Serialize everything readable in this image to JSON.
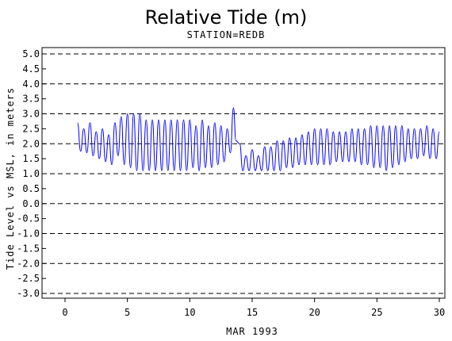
{
  "chart_data": {
    "type": "line",
    "title": "Relative Tide (m)",
    "subtitle": "STATION=REDB",
    "xlabel": "MAR 1993",
    "ylabel": "Tide Level vs MSL, in meters",
    "xlim": [
      0,
      30
    ],
    "ylim": [
      -3.0,
      5.0
    ],
    "x_ticks": [
      0,
      5,
      10,
      15,
      20,
      25,
      30
    ],
    "x_tick_labels": [
      "0",
      "5",
      "10",
      "15",
      "20",
      "25",
      "30"
    ],
    "y_ticks": [
      5.0,
      4.5,
      4.0,
      3.5,
      3.0,
      2.5,
      2.0,
      1.5,
      1.0,
      0.5,
      0.0,
      -0.5,
      -1.0,
      -1.5,
      -2.0,
      -2.5,
      -3.0
    ],
    "y_tick_labels": [
      "5.0",
      "4.5",
      "4.0",
      "3.5",
      "3.0",
      "2.5",
      "2.0",
      "1.5",
      "1.0",
      "0.5",
      "0.0",
      "-0.5",
      "-1.0",
      "-1.5",
      "-2.0",
      "-2.5",
      "-3.0"
    ],
    "gridlines_y": [
      5.0,
      4.0,
      3.0,
      2.0,
      1.0,
      0.0,
      -1.0,
      -2.0,
      -3.0
    ],
    "series": [
      {
        "color": "#0000ff",
        "x": [
          1.0,
          1.25,
          1.5,
          1.75,
          2.0,
          2.25,
          2.5,
          2.75,
          3.0,
          3.25,
          3.5,
          3.75,
          4.0,
          4.25,
          4.5,
          4.75,
          5.0,
          5.25,
          5.5,
          5.75,
          6.0,
          6.25,
          6.5,
          6.75,
          7.0,
          7.25,
          7.5,
          7.75,
          8.0,
          8.25,
          8.5,
          8.75,
          9.0,
          9.25,
          9.5,
          9.75,
          10.0,
          10.25,
          10.5,
          10.75,
          11.0,
          11.25,
          11.5,
          11.75,
          12.0,
          12.25,
          12.5,
          12.75,
          13.0,
          13.25,
          13.5,
          13.7,
          14.0,
          14.25,
          14.5,
          14.75,
          15.0,
          15.25,
          15.5,
          15.75,
          16.0,
          16.25,
          16.5,
          16.75,
          17.0,
          17.25,
          17.5,
          17.75,
          18.0,
          18.25,
          18.5,
          18.75,
          19.0,
          19.25,
          19.5,
          19.75,
          20.0,
          20.25,
          20.5,
          20.75,
          21.0,
          21.25,
          21.5,
          21.75,
          22.0,
          22.25,
          22.5,
          22.75,
          23.0,
          23.25,
          23.5,
          23.75,
          24.0,
          24.25,
          24.5,
          24.75,
          25.0,
          25.25,
          25.5,
          25.75,
          26.0,
          26.25,
          26.5,
          26.75,
          27.0,
          27.25,
          27.5,
          27.75,
          28.0,
          28.25,
          28.5,
          28.75,
          29.0,
          29.25,
          29.5,
          29.75,
          30.0
        ],
        "y": [
          2.7,
          1.75,
          2.5,
          1.7,
          2.7,
          1.6,
          2.4,
          1.5,
          2.5,
          1.4,
          2.3,
          1.3,
          2.7,
          1.6,
          2.9,
          1.3,
          3.0,
          1.2,
          3.0,
          1.1,
          3.0,
          1.1,
          2.8,
          1.1,
          2.8,
          1.1,
          2.8,
          1.1,
          2.8,
          1.1,
          2.8,
          1.1,
          2.8,
          1.1,
          2.8,
          1.1,
          2.8,
          1.2,
          2.6,
          1.1,
          2.8,
          1.2,
          2.6,
          1.2,
          2.7,
          1.3,
          2.6,
          1.4,
          2.5,
          1.7,
          3.2,
          2.1,
          2.0,
          1.1,
          1.6,
          1.1,
          1.8,
          1.1,
          1.6,
          1.1,
          1.9,
          1.1,
          1.9,
          1.1,
          2.1,
          1.1,
          2.1,
          1.2,
          2.2,
          1.2,
          2.2,
          1.3,
          2.3,
          1.3,
          2.4,
          1.3,
          2.5,
          1.3,
          2.5,
          1.3,
          2.5,
          1.3,
          2.4,
          1.4,
          2.4,
          1.4,
          2.4,
          1.4,
          2.5,
          1.4,
          2.5,
          1.3,
          2.5,
          1.3,
          2.6,
          1.2,
          2.6,
          1.2,
          2.6,
          1.1,
          2.6,
          1.2,
          2.6,
          1.3,
          2.6,
          1.4,
          2.5,
          1.5,
          2.5,
          1.5,
          2.5,
          1.6,
          2.6,
          1.5,
          2.5,
          1.5,
          2.4
        ]
      }
    ],
    "grid": true,
    "legend": "none"
  }
}
